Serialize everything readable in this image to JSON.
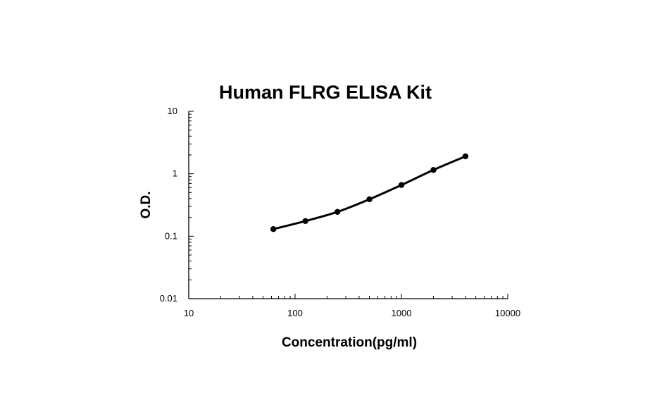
{
  "chart_data": {
    "type": "line",
    "title": "Human FLRG ELISA Kit",
    "xlabel": "Concentration(pg/ml)",
    "ylabel": "O.D.",
    "x_scale": "log",
    "y_scale": "log",
    "xlim": [
      10,
      10000
    ],
    "ylim": [
      0.01,
      10
    ],
    "x_ticks": [
      "10",
      "100",
      "1000",
      "10000"
    ],
    "y_ticks": [
      "0.01",
      "0.1",
      "1",
      "10"
    ],
    "grid": false,
    "legend": "none",
    "series": [
      {
        "x": [
          62.5,
          125,
          250,
          500,
          1000,
          2000,
          4000
        ],
        "y": [
          0.13,
          0.175,
          0.245,
          0.39,
          0.66,
          1.15,
          1.9
        ]
      }
    ],
    "colors": {
      "line": "#000000",
      "marker": "#000000",
      "axis": "#000000"
    }
  }
}
